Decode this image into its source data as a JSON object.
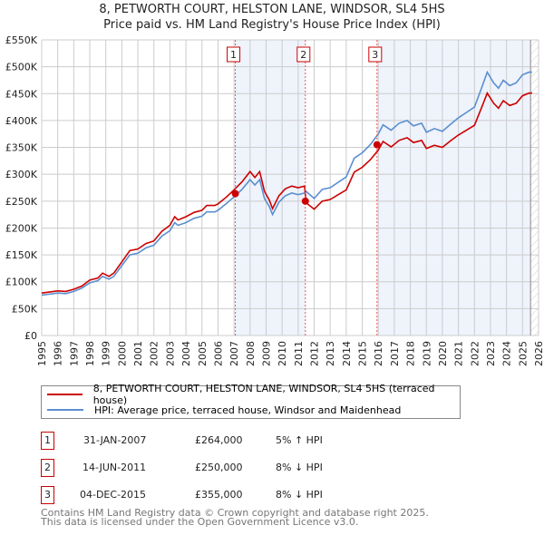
{
  "chart_data": {
    "type": "line",
    "title": "8, PETWORTH COURT, HELSTON LANE, WINDSOR, SL4 5HS",
    "subtitle": "Price paid vs. HM Land Registry's House Price Index (HPI)",
    "xlim": [
      1995,
      2026
    ],
    "ylim": [
      0,
      550
    ],
    "y_tick_labels": [
      "£0",
      "£50K",
      "£100K",
      "£150K",
      "£200K",
      "£250K",
      "£300K",
      "£350K",
      "£400K",
      "£450K",
      "£500K",
      "£550K"
    ],
    "x_tick_labels": [
      "1995",
      "1996",
      "1997",
      "1998",
      "1999",
      "2000",
      "2001",
      "2002",
      "2003",
      "2004",
      "2005",
      "2006",
      "2007",
      "2008",
      "2009",
      "2010",
      "2011",
      "2012",
      "2013",
      "2014",
      "2015",
      "2016",
      "2017",
      "2018",
      "2019",
      "2020",
      "2021",
      "2022",
      "2023",
      "2024",
      "2025",
      "2026"
    ],
    "grid": true,
    "x": [
      1995,
      1996,
      1996.5,
      1997,
      1997.5,
      1998,
      1998.5,
      1998.8,
      1999.2,
      1999.5,
      2000,
      2000.5,
      2001,
      2001.5,
      2002,
      2002.5,
      2003,
      2003.3,
      2003.5,
      2004,
      2004.5,
      2005,
      2005.3,
      2005.8,
      2006,
      2006.5,
      2007,
      2007.5,
      2008,
      2008.3,
      2008.6,
      2008.9,
      2009.2,
      2009.4,
      2009.8,
      2010.2,
      2010.6,
      2011,
      2011.4,
      2011.5,
      2012,
      2012.5,
      2013,
      2013.5,
      2014,
      2014.5,
      2015,
      2015.5,
      2016,
      2016.3,
      2016.8,
      2017.3,
      2017.8,
      2018.2,
      2018.7,
      2019,
      2019.5,
      2020,
      2020.5,
      2021,
      2021.5,
      2022,
      2022.5,
      2022.8,
      2023.2,
      2023.5,
      2023.8,
      2024.2,
      2024.6,
      2025,
      2025.4,
      2025.6
    ],
    "series": [
      {
        "name": "8, PETWORTH COURT, HELSTON LANE, WINDSOR, SL4 5HS (terraced house)",
        "color": "#cc0000",
        "values": [
          79,
          83,
          82,
          86,
          92,
          103,
          107,
          116,
          110,
          116,
          137,
          158,
          161,
          171,
          176,
          194,
          205,
          221,
          215,
          221,
          229,
          233,
          242,
          242,
          245,
          257,
          271,
          286,
          305,
          294,
          305,
          268,
          252,
          236,
          260,
          273,
          278,
          275,
          278,
          247,
          235,
          250,
          253,
          262,
          271,
          304,
          313,
          327,
          345,
          361,
          351,
          363,
          368,
          359,
          363,
          348,
          354,
          350,
          362,
          373,
          382,
          391,
          428,
          451,
          432,
          423,
          437,
          428,
          432,
          446,
          451,
          451
        ]
      },
      {
        "name": "HPI: Average price, terraced house, Windsor and Maidenhead",
        "color": "#5b8fd0",
        "values": [
          75,
          79,
          78,
          82,
          88,
          98,
          102,
          110,
          105,
          110,
          130,
          150,
          153,
          163,
          168,
          185,
          195,
          210,
          205,
          210,
          218,
          222,
          230,
          230,
          233,
          245,
          258,
          272,
          290,
          280,
          290,
          255,
          240,
          225,
          248,
          260,
          265,
          262,
          265,
          268,
          255,
          272,
          275,
          285,
          295,
          330,
          340,
          355,
          375,
          392,
          382,
          395,
          400,
          390,
          395,
          378,
          385,
          380,
          393,
          405,
          415,
          425,
          465,
          490,
          470,
          460,
          475,
          465,
          470,
          485,
          490,
          490
        ]
      }
    ],
    "sales": [
      {
        "id": "1",
        "x": 2007.08,
        "value": 264,
        "date": "31-JAN-2007",
        "price": "£264,000",
        "hpi": "5% ↑ HPI"
      },
      {
        "id": "2",
        "x": 2011.45,
        "value": 250,
        "date": "14-JUN-2011",
        "price": "£250,000",
        "hpi": "8% ↓ HPI"
      },
      {
        "id": "3",
        "x": 2015.92,
        "value": 355,
        "date": "04-DEC-2015",
        "price": "£355,000",
        "hpi": "8% ↓ HPI"
      }
    ],
    "data_end": 2025.5,
    "legend_position": "below"
  },
  "footer": [
    "Contains HM Land Registry data © Crown copyright and database right 2025.",
    "This data is licensed under the Open Government Licence v3.0."
  ]
}
